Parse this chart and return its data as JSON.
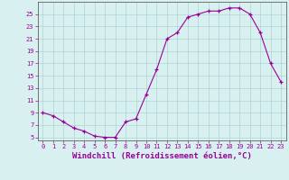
{
  "hours": [
    0,
    1,
    2,
    3,
    4,
    5,
    6,
    7,
    8,
    9,
    10,
    11,
    12,
    13,
    14,
    15,
    16,
    17,
    18,
    19,
    20,
    21,
    22,
    23
  ],
  "values": [
    9,
    8.5,
    7.5,
    6.5,
    6,
    5.2,
    5,
    5,
    7.5,
    8,
    12,
    16,
    21,
    22,
    24.5,
    25,
    25.5,
    25.5,
    26,
    26,
    25,
    22,
    17,
    14
  ],
  "line_color": "#990099",
  "marker": "+",
  "bg_color": "#d8f0f0",
  "grid_color": "#aed4d4",
  "axis_color": "#606060",
  "xlabel": "Windchill (Refroidissement éolien,°C)",
  "yticks": [
    5,
    7,
    9,
    11,
    13,
    15,
    17,
    19,
    21,
    23,
    25
  ],
  "ylim": [
    4.5,
    27
  ],
  "xlim": [
    -0.5,
    23.5
  ],
  "font_color": "#990099",
  "font_size": 6.5
}
